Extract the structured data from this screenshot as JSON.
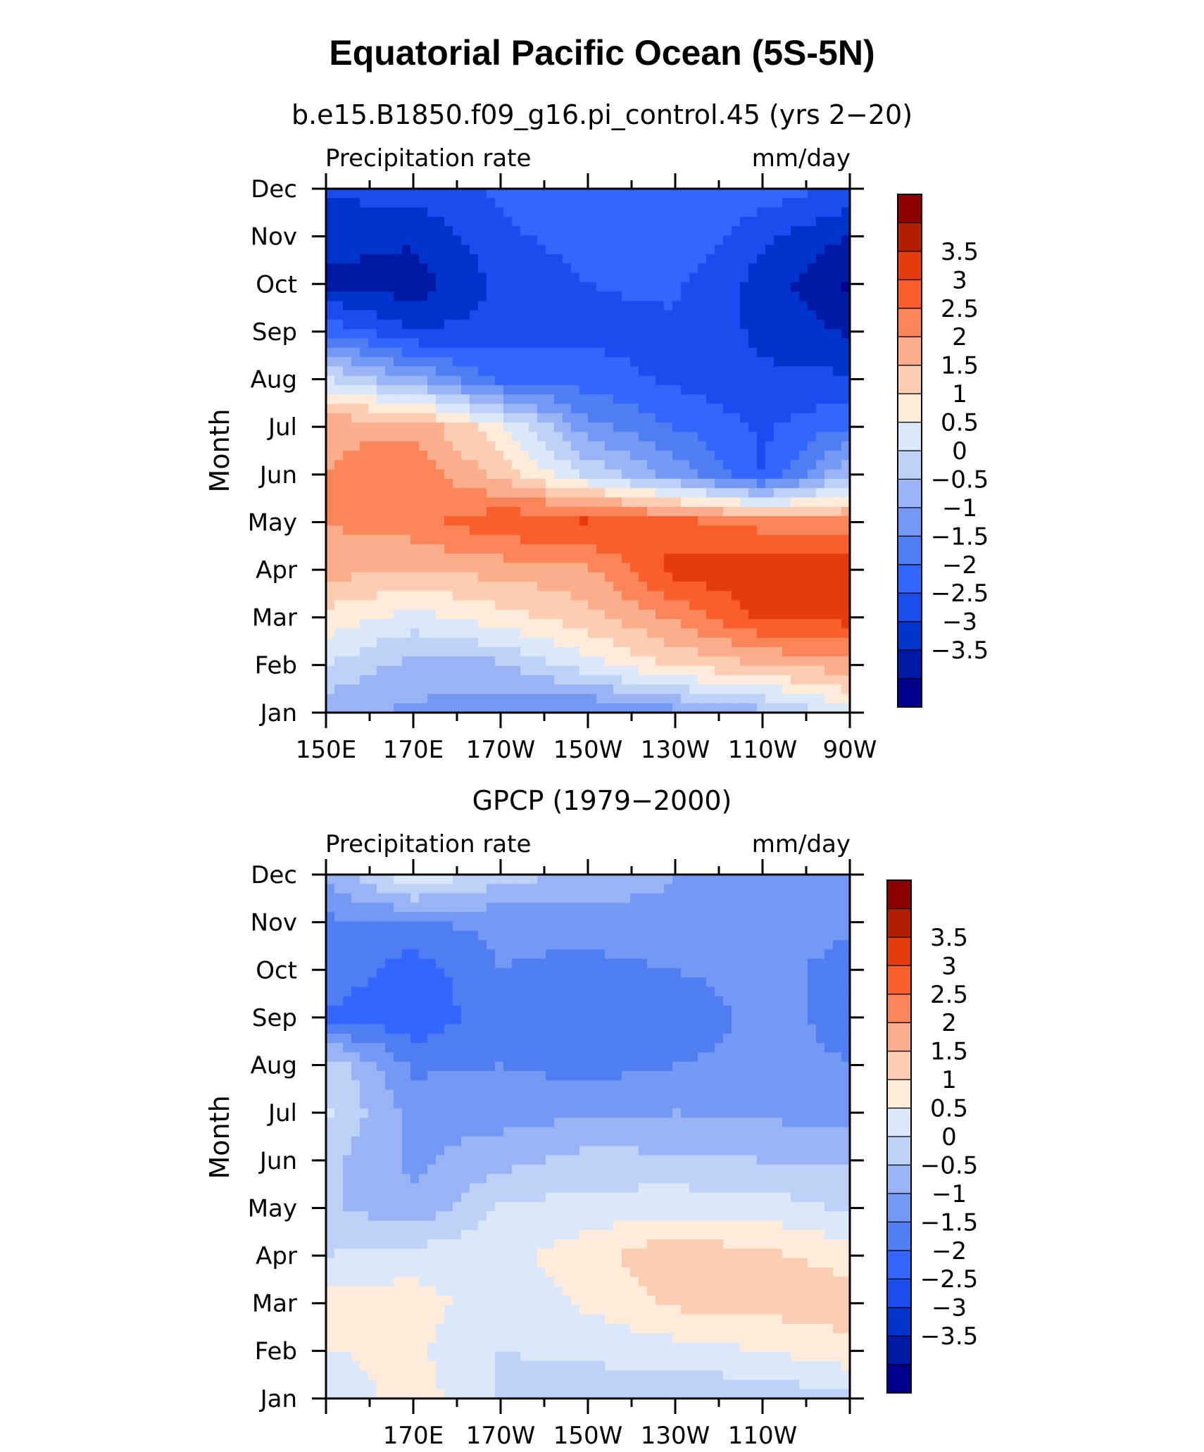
{
  "figure": {
    "title": "Equatorial Pacific Ocean (5S-5N)"
  },
  "palette": [
    "#00008c",
    "#001aa6",
    "#0033cc",
    "#1a4cf0",
    "#3366ff",
    "#4f7ef2",
    "#7499f5",
    "#99b3f5",
    "#bed1f7",
    "#dbe8fa",
    "#ffebd9",
    "#fcccb3",
    "#fcad8c",
    "#fa8559",
    "#fa5e2b",
    "#e63b0d",
    "#b32000",
    "#8c0000"
  ],
  "chart_data": [
    {
      "type": "heatmap",
      "subtitle": "b.e15.B1850.f09_g16.pi_control.45 (yrs 2−20)",
      "left_label": "Precipitation rate",
      "right_label": "mm/day",
      "ylabel": "Month",
      "x_range": [
        150,
        270
      ],
      "x_ticks": [
        {
          "lon": 150,
          "label": "150E"
        },
        {
          "lon": 170,
          "label": "170E"
        },
        {
          "lon": 190,
          "label": "170W"
        },
        {
          "lon": 210,
          "label": "150W"
        },
        {
          "lon": 230,
          "label": "130W"
        },
        {
          "lon": 250,
          "label": "110W"
        },
        {
          "lon": 270,
          "label": "90W"
        }
      ],
      "y_ticks": [
        "Jan",
        "Feb",
        "Mar",
        "Apr",
        "May",
        "Jun",
        "Jul",
        "Aug",
        "Sep",
        "Oct",
        "Nov",
        "Dec"
      ],
      "colorbar_labels": [
        "3.5",
        "3",
        "2.5",
        "2",
        "1.5",
        "1",
        "0.5",
        "0",
        "−0.5",
        "−1",
        "−1.5",
        "−2",
        "−2.5",
        "−3",
        "−3.5"
      ],
      "levels": [
        -4,
        -3.5,
        -3,
        -2.5,
        -2,
        -1.5,
        -1,
        -0.5,
        0,
        0.5,
        1,
        1.5,
        2,
        2.5,
        3,
        3.5,
        4
      ],
      "grid_lon": [
        150,
        170,
        190,
        210,
        230,
        250,
        270
      ],
      "months": [
        "Jan",
        "Feb",
        "Mar",
        "Apr",
        "May",
        "Jun",
        "Jul",
        "Aug",
        "Sep",
        "Oct",
        "Nov",
        "Dec"
      ],
      "values": [
        [
          -0.4,
          -0.6,
          -0.8,
          -1.1,
          -0.7,
          -0.2,
          0.8
        ],
        [
          0.5,
          -0.2,
          -0.1,
          0.8,
          1.6,
          2.0,
          2.3
        ],
        [
          1.3,
          0.8,
          1.3,
          1.8,
          2.6,
          3.6,
          3.7
        ],
        [
          2.2,
          2.0,
          2.2,
          2.4,
          3.7,
          3.9,
          3.8
        ],
        [
          2.5,
          2.8,
          3.4,
          3.6,
          3.2,
          2.8,
          2.6
        ],
        [
          2.5,
          2.9,
          1.8,
          0.4,
          -0.7,
          -2.0,
          0.0
        ],
        [
          2.4,
          2.4,
          1.1,
          -0.8,
          -1.5,
          -2.1,
          -1.5
        ],
        [
          0.5,
          -0.4,
          -1.6,
          -1.8,
          -2.1,
          -2.4,
          -2.4
        ],
        [
          -1.6,
          -2.5,
          -2.3,
          -2.1,
          -2.1,
          -2.6,
          -3.1
        ],
        [
          -3.1,
          -3.3,
          -2.4,
          -2.0,
          -1.9,
          -2.7,
          -3.6
        ],
        [
          -2.8,
          -2.9,
          -2.1,
          -1.8,
          -1.5,
          -2.4,
          -3.0
        ],
        [
          -2.4,
          -2.3,
          -1.9,
          -1.7,
          -1.6,
          -1.7,
          -2.1
        ]
      ]
    },
    {
      "type": "heatmap",
      "subtitle": "GPCP (1979−2000)",
      "left_label": "Precipitation rate",
      "right_label": "mm/day",
      "ylabel": "Month",
      "x_range": [
        150,
        270
      ],
      "x_ticks": [
        {
          "lon": 170,
          "label": "170E"
        },
        {
          "lon": 190,
          "label": "170W"
        },
        {
          "lon": 210,
          "label": "150W"
        },
        {
          "lon": 230,
          "label": "130W"
        },
        {
          "lon": 250,
          "label": "110W"
        }
      ],
      "y_ticks": [
        "Jan",
        "Feb",
        "Mar",
        "Apr",
        "May",
        "Jun",
        "Jul",
        "Aug",
        "Sep",
        "Oct",
        "Nov",
        "Dec"
      ],
      "colorbar_labels": [
        "3.5",
        "3",
        "2.5",
        "2",
        "1.5",
        "1",
        "0.5",
        "0",
        "−0.5",
        "−1",
        "−1.5",
        "−2",
        "−2.5",
        "−3",
        "−3.5"
      ],
      "levels": [
        -4,
        -3.5,
        -3,
        -2.5,
        -2,
        -1.5,
        -1,
        -0.5,
        0,
        0.5,
        1,
        1.5,
        2,
        2.5,
        3,
        3.5,
        4
      ],
      "grid_lon": [
        150,
        170,
        190,
        210,
        230,
        250,
        270
      ],
      "months": [
        "Jan",
        "Feb",
        "Mar",
        "Apr",
        "May",
        "Jun",
        "Jul",
        "Aug",
        "Sep",
        "Oct",
        "Nov",
        "Dec"
      ],
      "values": [
        [
          0.6,
          1.3,
          0.4,
          0.2,
          0.1,
          0.1,
          0.4
        ],
        [
          1.0,
          1.1,
          0.5,
          0.6,
          0.8,
          1.0,
          1.3
        ],
        [
          1.2,
          1.3,
          0.6,
          1.1,
          1.6,
          1.7,
          1.8
        ],
        [
          0.5,
          0.7,
          0.8,
          1.3,
          1.9,
          1.6,
          1.3
        ],
        [
          0.1,
          -0.4,
          0.6,
          0.7,
          0.8,
          0.8,
          0.4
        ],
        [
          0.1,
          -0.6,
          -0.2,
          0.2,
          0.1,
          0.0,
          -0.1
        ],
        [
          0.6,
          -0.7,
          -0.7,
          -0.6,
          -0.5,
          -0.6,
          -0.7
        ],
        [
          0.4,
          -1.1,
          -1.0,
          -1.2,
          -1.0,
          -0.8,
          -1.0
        ],
        [
          -1.6,
          -1.9,
          -1.2,
          -1.3,
          -1.4,
          -0.8,
          -1.2
        ],
        [
          -1.1,
          -1.8,
          -1.0,
          -1.2,
          -1.0,
          -0.8,
          -1.2
        ],
        [
          -1.1,
          -1.0,
          -0.9,
          -0.7,
          -0.6,
          -0.8,
          -0.9
        ],
        [
          -0.4,
          1.0,
          0.3,
          -0.2,
          -0.5,
          -0.6,
          -0.6
        ]
      ]
    }
  ]
}
